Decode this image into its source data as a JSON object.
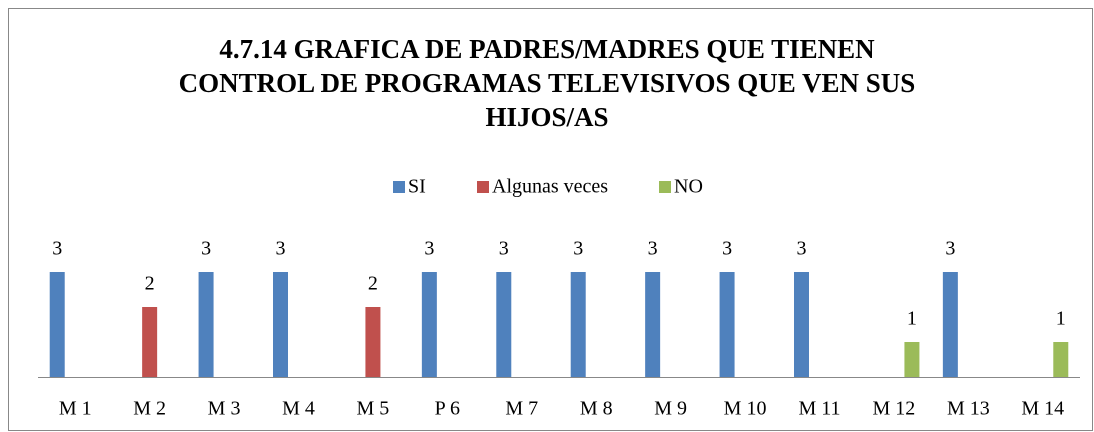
{
  "chart_data": {
    "type": "bar",
    "title": "4.7.14 GRAFICA DE PADRES/MADRES QUE TIENEN CONTROL DE PROGRAMAS TELEVISIVOS QUE VEN SUS HIJOS/AS",
    "categories": [
      "M 1",
      "M 2",
      "M 3",
      "M 4",
      "M 5",
      "P 6",
      "M 7",
      "M 8",
      "M 9",
      "M 10",
      "M 11",
      "M 12",
      "M 13",
      "M 14"
    ],
    "series": [
      {
        "name": "SI",
        "color": "#4f81bd",
        "values": [
          3,
          null,
          3,
          3,
          null,
          3,
          3,
          3,
          3,
          3,
          3,
          null,
          3,
          null
        ]
      },
      {
        "name": "Algunas veces",
        "color": "#c0504d",
        "values": [
          null,
          2,
          null,
          null,
          2,
          null,
          null,
          null,
          null,
          null,
          null,
          null,
          null,
          null
        ]
      },
      {
        "name": "NO",
        "color": "#9bbb59",
        "values": [
          null,
          null,
          null,
          null,
          null,
          null,
          null,
          null,
          null,
          null,
          null,
          1,
          null,
          1
        ]
      }
    ],
    "legend": "top"
  }
}
